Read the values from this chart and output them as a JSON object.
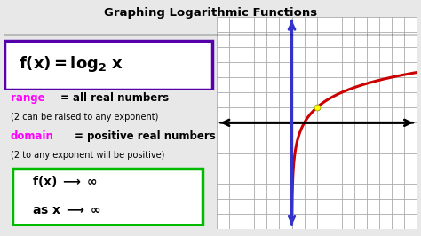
{
  "title": "Graphing Logarithmic Functions",
  "title_fontsize": 9.5,
  "bg_color": "#e8e8e8",
  "title_color": "#000000",
  "formula_box_color": "#5500aa",
  "range_label": "range",
  "range_text": " = all real numbers",
  "range_sub": "(2 can be raised to any exponent)",
  "domain_label": "domain",
  "domain_text": " = positive real numbers",
  "domain_sub": "(2 to any exponent will be positive)",
  "magenta_color": "#ff00ff",
  "bottom_box_color": "#00bb00",
  "curve_color": "#cc0000",
  "yaxis_color": "#3333cc",
  "grid_color": "#aaaaaa",
  "dot_color": "#ffff00",
  "graph_xlim": [
    -6,
    10
  ],
  "graph_ylim": [
    -7,
    7
  ]
}
